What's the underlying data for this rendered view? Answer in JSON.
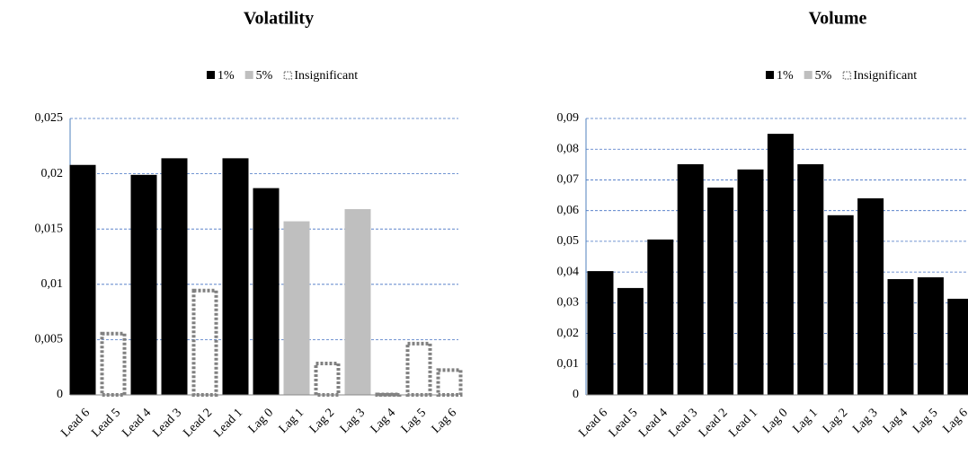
{
  "chart_data": [
    {
      "type": "bar",
      "title": "Volatility",
      "categories": [
        "Lead 6",
        "Lead 5",
        "Lead 4",
        "Lead 3",
        "Lead 2",
        "Lead 1",
        "Lag 0",
        "Lag 1",
        "Lag 2",
        "Lag 3",
        "Lag 4",
        "Lag 5",
        "Lag 6"
      ],
      "series": [
        {
          "name": "1%",
          "color": "#000000",
          "values": [
            0.0208,
            null,
            0.0199,
            0.0214,
            null,
            0.0214,
            0.0187,
            null,
            null,
            null,
            null,
            null,
            null
          ]
        },
        {
          "name": "5%",
          "color": "#bfbfbf",
          "values": [
            null,
            null,
            null,
            null,
            null,
            null,
            null,
            0.0157,
            null,
            0.0168,
            null,
            null,
            null
          ]
        },
        {
          "name": "Insignificant",
          "color": "#808080",
          "values": [
            null,
            0.0057,
            null,
            null,
            0.0096,
            null,
            null,
            null,
            0.003,
            null,
            0.0002,
            0.0048,
            0.0024
          ]
        }
      ],
      "ylim": [
        0,
        0.025
      ],
      "yticks": [
        0,
        {
          "value": 0.005,
          "label": "0,005"
        },
        {
          "value": 0.01,
          "label": "0,01"
        },
        {
          "value": 0.015,
          "label": "0,015"
        },
        {
          "value": 0.02,
          "label": "0,02"
        },
        {
          "value": 0.025,
          "label": "0,025"
        }
      ],
      "grid": true,
      "legend": "top"
    },
    {
      "type": "bar",
      "title": "Volume",
      "categories": [
        "Lead 6",
        "Lead 5",
        "Lead 4",
        "Lead 3",
        "Lead 2",
        "Lead 1",
        "Lag 0",
        "Lag 1",
        "Lag 2",
        "Lag 3",
        "Lag 4",
        "Lag 5",
        "Lag 6"
      ],
      "series": [
        {
          "name": "1%",
          "color": "#000000",
          "values": [
            0.0403,
            0.0348,
            0.0506,
            0.0751,
            0.0675,
            0.0734,
            0.085,
            0.0751,
            0.0585,
            0.064,
            0.0377,
            0.0383,
            0.0313
          ]
        },
        {
          "name": "5%",
          "color": "#bfbfbf",
          "values": [
            null,
            null,
            null,
            null,
            null,
            null,
            null,
            null,
            null,
            null,
            null,
            null,
            null
          ]
        },
        {
          "name": "Insignificant",
          "color": "#808080",
          "values": [
            null,
            null,
            null,
            null,
            null,
            null,
            null,
            null,
            null,
            null,
            null,
            null,
            null
          ]
        }
      ],
      "ylim": [
        0,
        0.09
      ],
      "yticks": [
        0,
        {
          "value": 0.01,
          "label": "0,01"
        },
        {
          "value": 0.02,
          "label": "0,02"
        },
        {
          "value": 0.03,
          "label": "0,03"
        },
        {
          "value": 0.04,
          "label": "0,04"
        },
        {
          "value": 0.05,
          "label": "0,05"
        },
        {
          "value": 0.06,
          "label": "0,06"
        },
        {
          "value": 0.07,
          "label": "0,07"
        },
        {
          "value": 0.08,
          "label": "0,08"
        },
        {
          "value": 0.09,
          "label": "0,09"
        }
      ],
      "grid": true,
      "legend": "top"
    }
  ]
}
